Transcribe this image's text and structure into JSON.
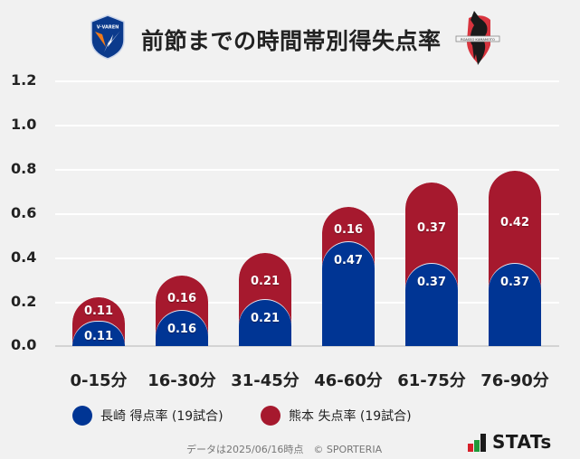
{
  "header": {
    "title": "前節までの時間帯別得失点率",
    "left_logo": "v-varen-nagasaki-crest",
    "right_logo": "roasso-kumamoto-crest"
  },
  "colors": {
    "home": "#003594",
    "away": "#a6192e",
    "background": "#f1f1f1",
    "grid": "#ffffff",
    "baseline": "#d3d3d3"
  },
  "chart_data": {
    "type": "bar",
    "stacked": true,
    "title": "前節までの時間帯別得失点率",
    "xlabel": "",
    "ylabel": "",
    "ylim": [
      0,
      1.2
    ],
    "yticks": [
      "1.2",
      "1.0",
      "0.8",
      "0.6",
      "0.4",
      "0.2",
      "0.0"
    ],
    "grid": true,
    "legend_position": "bottom",
    "categories": [
      "0-15分",
      "16-30分",
      "31-45分",
      "46-60分",
      "61-75分",
      "76-90分"
    ],
    "series": [
      {
        "name": "長崎 得点率 (19試合)",
        "color": "#003594",
        "values": [
          0.11,
          0.16,
          0.21,
          0.47,
          0.37,
          0.37
        ]
      },
      {
        "name": "熊本 失点率 (19試合)",
        "color": "#a6192e",
        "values": [
          0.11,
          0.16,
          0.21,
          0.16,
          0.37,
          0.42
        ]
      }
    ],
    "labels": {
      "home": [
        "0.11",
        "0.16",
        "0.21",
        "0.47",
        "0.37",
        "0.37"
      ],
      "away": [
        "0.11",
        "0.16",
        "0.21",
        "0.16",
        "0.37",
        "0.42"
      ]
    }
  },
  "legend": {
    "items": [
      {
        "label": "長崎 得点率 (19試合)",
        "color": "#003594"
      },
      {
        "label": "熊本 失点率 (19試合)",
        "color": "#a6192e"
      }
    ]
  },
  "footer": {
    "note": "データは2025/06/16時点　© SPORTERIA",
    "brand": "STATs"
  }
}
